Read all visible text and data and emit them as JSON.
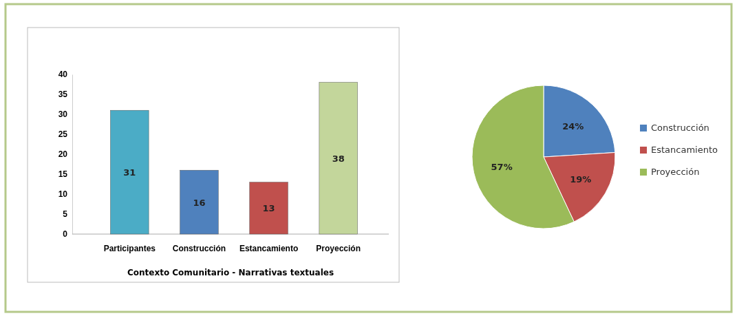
{
  "chart_data": [
    {
      "type": "bar",
      "xlabel": "Contexto Comunitario - Narrativas textuales",
      "categories": [
        "Participantes",
        "Construcción",
        "Estancamiento",
        "Proyección"
      ],
      "values": [
        31,
        16,
        13,
        38
      ],
      "colors": [
        "#4bacc6",
        "#4f81bd",
        "#c0504d",
        "#c3d69b"
      ],
      "ylim": [
        0,
        40
      ],
      "yticks": [
        0,
        5,
        10,
        15,
        20,
        25,
        30,
        35,
        40
      ],
      "data_labels": true
    },
    {
      "type": "pie",
      "categories": [
        "Construcción",
        "Estancamiento",
        "Proyección"
      ],
      "values": [
        24,
        19,
        57
      ],
      "colors": [
        "#4f81bd",
        "#c0504d",
        "#9bbb59"
      ],
      "legend": "right",
      "value_labels": [
        "24%",
        "19%",
        "57%"
      ]
    }
  ]
}
